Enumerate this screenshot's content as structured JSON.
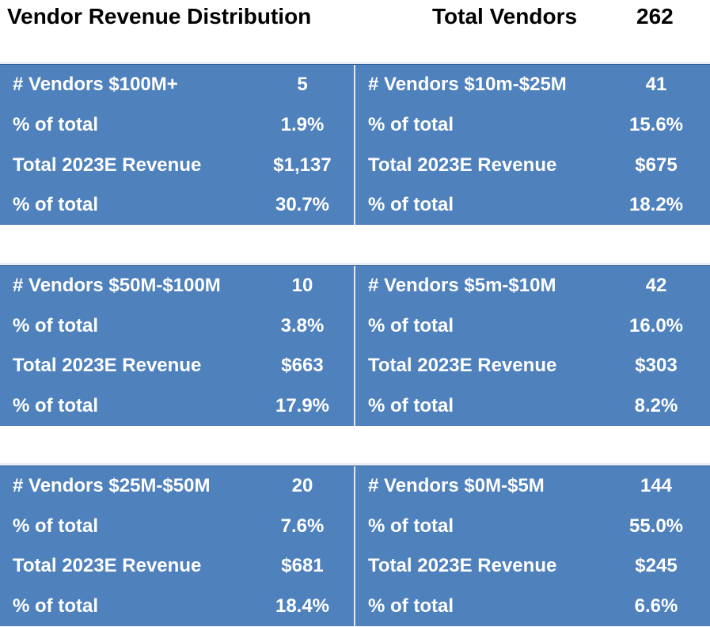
{
  "header": {
    "title": "Vendor Revenue Distribution",
    "total_label": "Total Vendors",
    "total_value": "262"
  },
  "colors": {
    "panel_bg": "#4f81bd",
    "panel_text": "#ffffff",
    "divider": "#dfe7f2"
  },
  "bands": [
    {
      "left": {
        "vendors_label": "# Vendors $100M+",
        "vendors_value": "5",
        "pct_vendors_label": "% of total",
        "pct_vendors_value": "1.9%",
        "revenue_label": "Total 2023E Revenue",
        "revenue_value": "$1,137",
        "pct_revenue_label": "% of total",
        "pct_revenue_value": "30.7%"
      },
      "right": {
        "vendors_label": "# Vendors $10m-$25M",
        "vendors_value": "41",
        "pct_vendors_label": "% of total",
        "pct_vendors_value": "15.6%",
        "revenue_label": "Total 2023E Revenue",
        "revenue_value": "$675",
        "pct_revenue_label": "% of total",
        "pct_revenue_value": "18.2%"
      }
    },
    {
      "left": {
        "vendors_label": "# Vendors $50M-$100M",
        "vendors_value": "10",
        "pct_vendors_label": "% of total",
        "pct_vendors_value": "3.8%",
        "revenue_label": "Total 2023E Revenue",
        "revenue_value": "$663",
        "pct_revenue_label": "% of total",
        "pct_revenue_value": "17.9%"
      },
      "right": {
        "vendors_label": "# Vendors $5m-$10M",
        "vendors_value": "42",
        "pct_vendors_label": "% of total",
        "pct_vendors_value": "16.0%",
        "revenue_label": "Total 2023E Revenue",
        "revenue_value": "$303",
        "pct_revenue_label": "% of total",
        "pct_revenue_value": "8.2%"
      }
    },
    {
      "left": {
        "vendors_label": "# Vendors $25M-$50M",
        "vendors_value": "20",
        "pct_vendors_label": "% of total",
        "pct_vendors_value": "7.6%",
        "revenue_label": "Total 2023E Revenue",
        "revenue_value": "$681",
        "pct_revenue_label": "% of total",
        "pct_revenue_value": "18.4%"
      },
      "right": {
        "vendors_label": "# Vendors $0M-$5M",
        "vendors_value": "144",
        "pct_vendors_label": "% of total",
        "pct_vendors_value": "55.0%",
        "revenue_label": "Total 2023E Revenue",
        "revenue_value": "$245",
        "pct_revenue_label": "% of total",
        "pct_revenue_value": "6.6%"
      }
    }
  ]
}
